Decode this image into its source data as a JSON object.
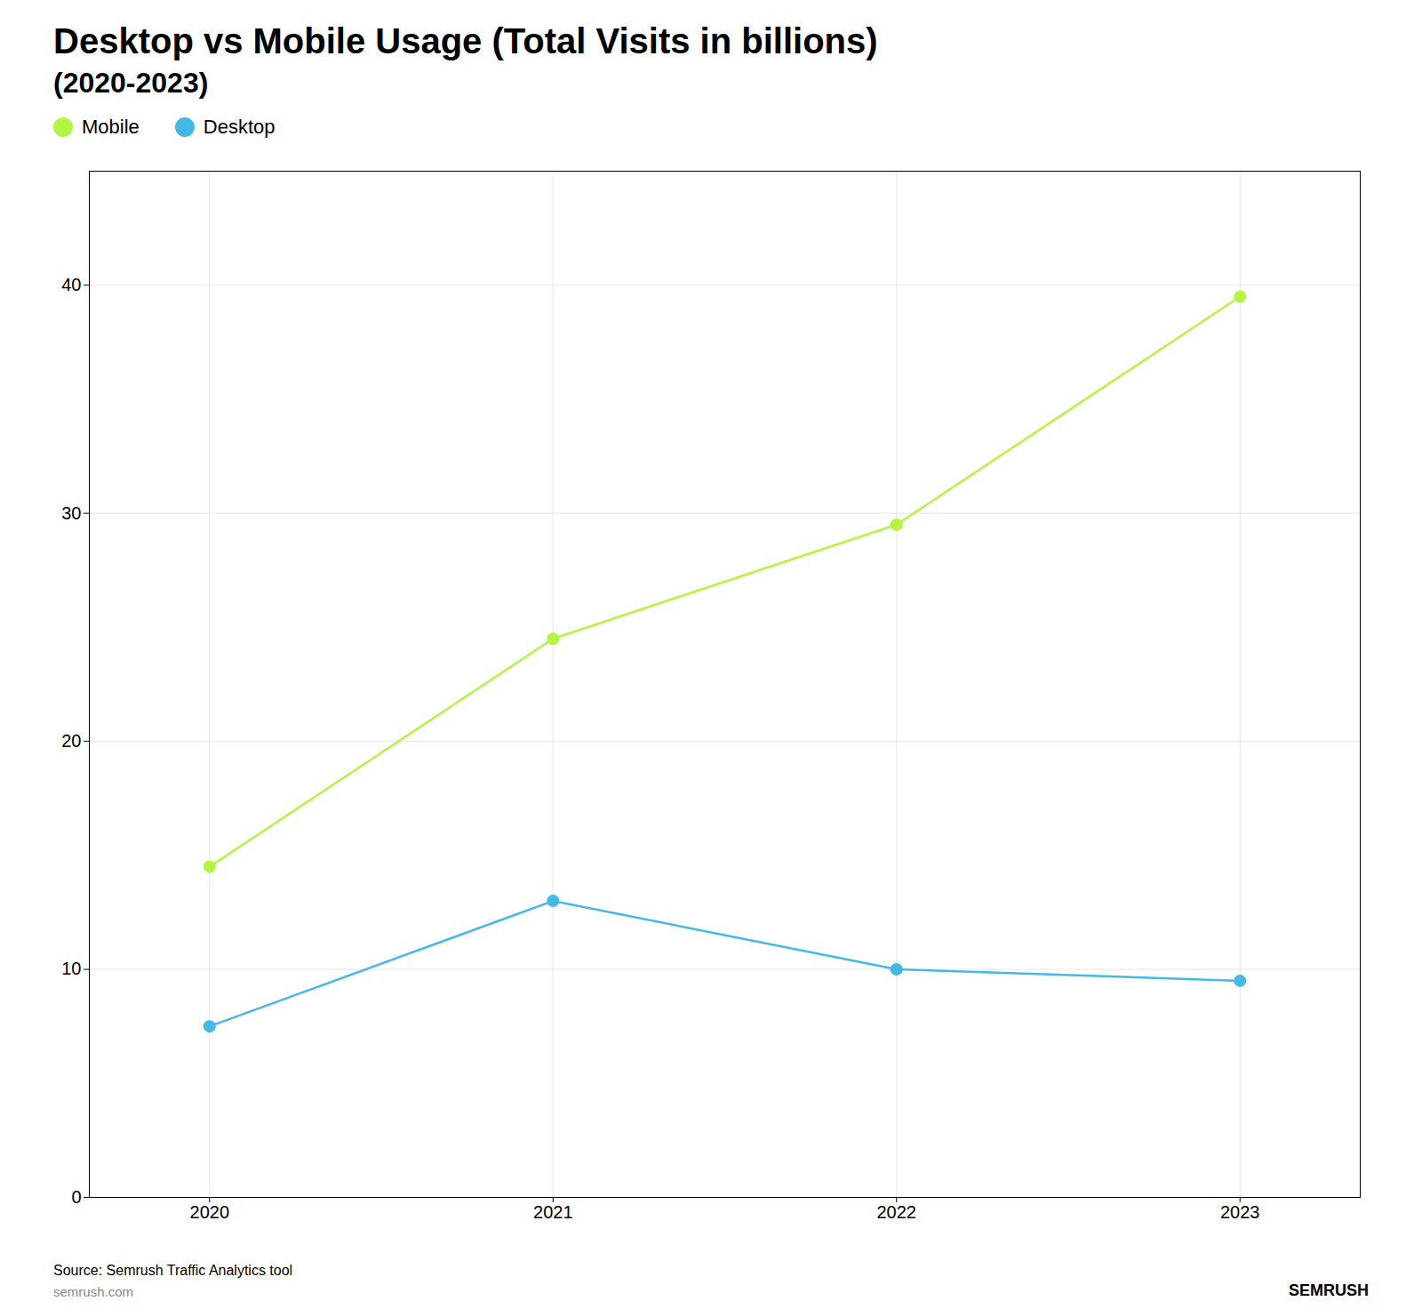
{
  "chart_data": {
    "type": "line",
    "title": "Desktop vs Mobile Usage (Total Visits in billions)",
    "subtitle": "(2020-2023)",
    "x": [
      2020,
      2021,
      2022,
      2023
    ],
    "series": [
      {
        "name": "Mobile",
        "color": "#b3f542",
        "values": [
          14.5,
          24.5,
          29.5,
          39.5
        ]
      },
      {
        "name": "Desktop",
        "color": "#45b8e8",
        "values": [
          7.5,
          13.0,
          10.0,
          9.5
        ]
      }
    ],
    "xlim": [
      2019.65,
      2023.35
    ],
    "xticks": [
      2020,
      2021,
      2022,
      2023
    ],
    "ylim": [
      0,
      45
    ],
    "yticks": [
      0,
      10,
      20,
      30,
      40
    ],
    "grid": true,
    "legend": "top",
    "marker": "circle",
    "annotations": [
      "Source: Semrush Traffic Analytics tool",
      "semrush.com",
      "SEMRUSH"
    ]
  }
}
